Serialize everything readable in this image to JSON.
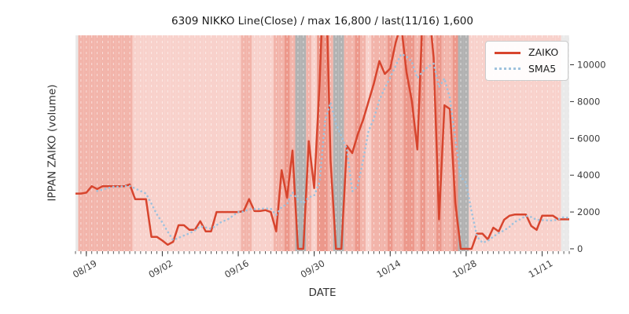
{
  "title": "6309 NIKKO Line(Close) / max 16,800 / last(11/16) 1,600",
  "legend": {
    "position": "upper right",
    "items": [
      {
        "label": "ZAIKO",
        "style": "solid",
        "color": "#d7452e"
      },
      {
        "label": "SMA5",
        "style": "dotted",
        "color": "#9fc2dd"
      }
    ]
  },
  "chart_data": {
    "type": "line",
    "title": "6309 NIKKO Line(Close) / max 16,800 / last(11/16) 1,600",
    "xlabel": "DATE",
    "ylabel": "IPPAN ZAIKO (volume)",
    "start_date": "08/17",
    "end_date": "11/16",
    "max_value": 16800,
    "last_date": "11/16",
    "last_value": 1600,
    "ylim": [
      -130,
      11600
    ],
    "y_ticks": [
      0,
      2000,
      4000,
      6000,
      8000,
      10000
    ],
    "x_tick_labels": [
      "08/19",
      "09/02",
      "09/16",
      "09/30",
      "10/14",
      "10/28",
      "11/11"
    ],
    "x_tick_day_indices": [
      2,
      16,
      30,
      44,
      58,
      72,
      86
    ],
    "grid": "white dashed vertical line per day",
    "dates": [
      "08/17",
      "08/18",
      "08/19",
      "08/20",
      "08/21",
      "08/22",
      "08/23",
      "08/24",
      "08/25",
      "08/26",
      "08/27",
      "08/28",
      "08/29",
      "08/30",
      "08/31",
      "09/01",
      "09/02",
      "09/03",
      "09/04",
      "09/05",
      "09/06",
      "09/07",
      "09/08",
      "09/09",
      "09/10",
      "09/11",
      "09/12",
      "09/13",
      "09/14",
      "09/15",
      "09/16",
      "09/17",
      "09/18",
      "09/19",
      "09/20",
      "09/21",
      "09/22",
      "09/23",
      "09/24",
      "09/25",
      "09/26",
      "09/27",
      "09/28",
      "09/29",
      "09/30",
      "10/01",
      "10/02",
      "10/03",
      "10/04",
      "10/05",
      "10/06",
      "10/07",
      "10/08",
      "10/09",
      "10/10",
      "10/11",
      "10/12",
      "10/13",
      "10/14",
      "10/15",
      "10/16",
      "10/17",
      "10/18",
      "10/19",
      "10/20",
      "10/21",
      "10/22",
      "10/23",
      "10/24",
      "10/25",
      "10/26",
      "10/27",
      "10/28",
      "10/29",
      "10/30",
      "10/31",
      "11/01",
      "11/02",
      "11/03",
      "11/04",
      "11/05",
      "11/06",
      "11/07",
      "11/08",
      "11/09",
      "11/10",
      "11/11",
      "11/12",
      "11/13",
      "11/14",
      "11/15",
      "11/16"
    ],
    "series": [
      {
        "name": "ZAIKO",
        "color": "#d7452e",
        "style": "solid",
        "values": [
          3000,
          3000,
          3050,
          3400,
          3250,
          3400,
          3400,
          3400,
          3400,
          3400,
          3500,
          2700,
          2700,
          2700,
          650,
          650,
          450,
          220,
          380,
          1280,
          1280,
          1030,
          1030,
          1500,
          950,
          950,
          2000,
          2000,
          2000,
          2000,
          2000,
          2050,
          2700,
          2050,
          2050,
          2100,
          2000,
          950,
          4270,
          2780,
          5340,
          0,
          0,
          5850,
          3300,
          9000,
          16800,
          4800,
          0,
          0,
          5600,
          5200,
          6200,
          7000,
          8000,
          9000,
          10200,
          9500,
          9800,
          11200,
          12200,
          9600,
          8000,
          5400,
          13000,
          13500,
          10400,
          1600,
          7800,
          7600,
          2500,
          0,
          0,
          0,
          825,
          825,
          510,
          1150,
          940,
          1580,
          1800,
          1865,
          1865,
          1865,
          1240,
          1030,
          1800,
          1800,
          1800,
          1600,
          1600,
          1600
        ]
      },
      {
        "name": "SMA5",
        "color": "#9fc2dd",
        "style": "dotted",
        "window": 5,
        "derived_from": "ZAIKO (5-day moving average, starts at 5th point)"
      }
    ],
    "background_bands": {
      "note": "one vertical band per day; pink intensity heat plus gray = no-data days",
      "colors": {
        "e": "#e9e9e9",
        "1": "#f8d1cb",
        "2": "#f2b4aa",
        "3": "#ec988b",
        "g": "#b2b2b2"
      },
      "codes": [
        "e",
        "2",
        "2",
        "2",
        "2",
        "2",
        "2",
        "2",
        "2",
        "2",
        "2",
        "1",
        "1",
        "1",
        "1",
        "1",
        "1",
        "1",
        "1",
        "1",
        "1",
        "1",
        "1",
        "1",
        "1",
        "1",
        "1",
        "1",
        "1",
        "1",
        "1",
        "2",
        "2",
        "1",
        "1",
        "1",
        "1",
        "2",
        "2",
        "3",
        "2",
        "g",
        "g",
        "2",
        "1",
        "3",
        "3",
        "2",
        "g",
        "g",
        "2",
        "2",
        "3",
        "2",
        "1",
        "2",
        "2",
        "2",
        "3",
        "2",
        "2",
        "3",
        "3",
        "2",
        "3",
        "2",
        "2",
        "3",
        "2",
        "2",
        "3",
        "g",
        "g",
        "1",
        "1",
        "1",
        "1",
        "1",
        "1",
        "1",
        "1",
        "1",
        "1",
        "1",
        "1",
        "1",
        "1",
        "1",
        "1",
        "1",
        "e",
        "e"
      ]
    }
  }
}
